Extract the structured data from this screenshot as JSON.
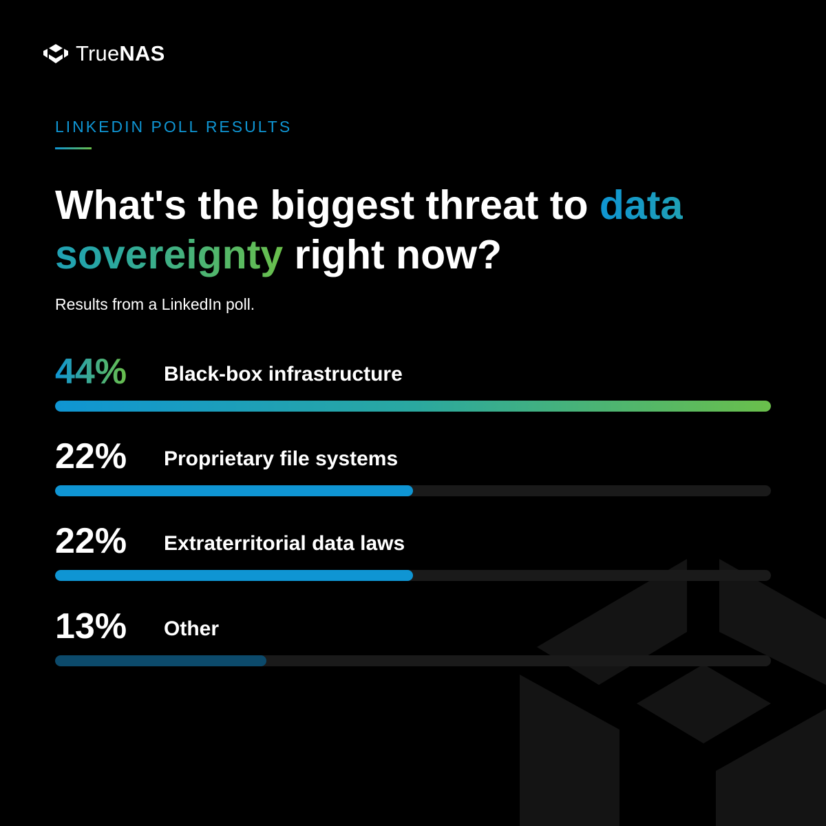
{
  "brand": {
    "name_part1": "True",
    "name_part2": "NAS"
  },
  "eyebrow": "LINKEDIN POLL RESULTS",
  "headline": {
    "before": "What's the biggest threat to ",
    "highlight": "data sovereignty",
    "after": " right now?"
  },
  "subtitle": "Results from a LinkedIn poll.",
  "colors": {
    "background": "#000000",
    "accent_blue": "#0f95d3",
    "accent_green": "#6abf4b",
    "bar_track": "#1a1a1a",
    "bar_dim": "#0c4a6b"
  },
  "chart_data": {
    "type": "bar",
    "orientation": "horizontal",
    "title": "What's the biggest threat to data sovereignty right now?",
    "xlim": [
      0,
      44
    ],
    "grid": false,
    "categories": [
      "Black-box infrastructure",
      "Proprietary file systems",
      "Extraterritorial data laws",
      "Other"
    ],
    "values": [
      44,
      22,
      22,
      13
    ],
    "labels": [
      "44%",
      "22%",
      "22%",
      "13%"
    ]
  }
}
